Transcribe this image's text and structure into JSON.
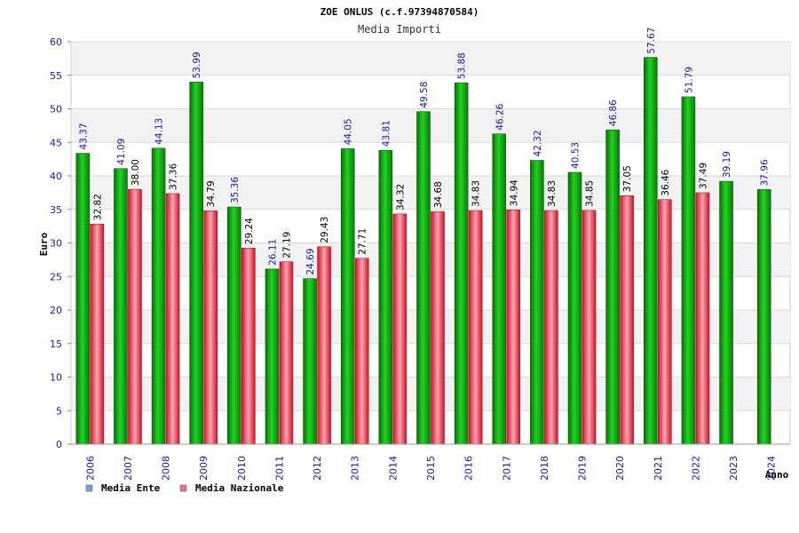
{
  "chart_data": {
    "type": "bar",
    "title": "ZOE ONLUS (c.f.97394870584)",
    "subtitle": "Media Importi",
    "xlabel": "Anno",
    "ylabel": "Euro",
    "ylim": [
      0,
      60
    ],
    "ytick_step": 5,
    "grid": true,
    "legend_position": "bottom-left",
    "categories": [
      "2006",
      "2007",
      "2008",
      "2009",
      "2010",
      "2011",
      "2012",
      "2013",
      "2014",
      "2015",
      "2016",
      "2017",
      "2018",
      "2019",
      "2020",
      "2021",
      "2022",
      "2023",
      "2024"
    ],
    "series": [
      {
        "name": "Media Ente",
        "color": "#11b411",
        "legend_color": "#6aa6e8",
        "values": [
          43.37,
          41.09,
          44.13,
          53.99,
          35.36,
          26.11,
          24.69,
          44.05,
          43.81,
          49.58,
          53.88,
          46.26,
          42.32,
          40.53,
          46.86,
          57.67,
          51.79,
          39.19,
          37.96
        ],
        "labels": [
          "43.37",
          "41.09",
          "44.13",
          "53.99",
          "35.36",
          "26.11",
          "24.69",
          "44.05",
          "43.81",
          "49.58",
          "53.88",
          "46.26",
          "42.32",
          "40.53",
          "46.86",
          "57.67",
          "51.79",
          "39.19",
          "37.96"
        ]
      },
      {
        "name": "Media Nazionale",
        "color": "#e8283a",
        "legend_color": "#e0739a",
        "values": [
          32.82,
          38.0,
          37.36,
          34.79,
          29.24,
          27.19,
          29.43,
          27.71,
          34.32,
          34.68,
          34.83,
          34.94,
          34.83,
          34.85,
          37.05,
          36.46,
          37.49,
          null,
          null
        ],
        "labels": [
          "32.82",
          "38.00",
          "37.36",
          "34.79",
          "29.24",
          "27.19",
          "29.43",
          "27.71",
          "34.32",
          "34.68",
          "34.83",
          "34.94",
          "34.83",
          "34.85",
          "37.05",
          "36.46",
          "37.49",
          "",
          ""
        ]
      }
    ]
  }
}
